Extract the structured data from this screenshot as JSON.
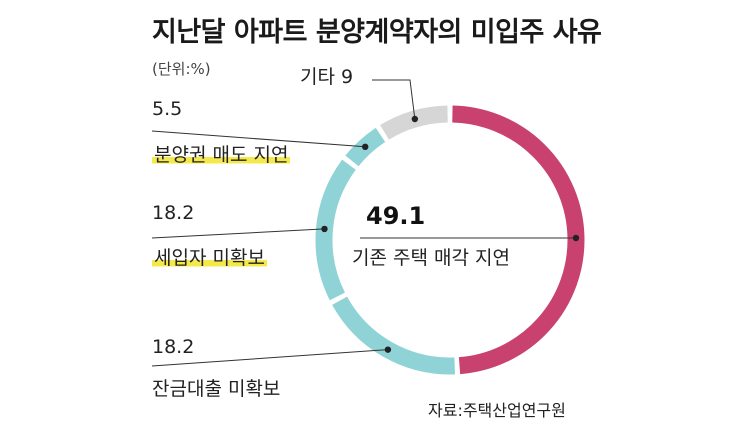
{
  "chart_data": {
    "type": "pie",
    "title": "지난달 아파트 분양계약자의 미입주 사유",
    "unit": "(단위:%)",
    "source": "자료:주택산업연구원",
    "slices": [
      {
        "label": "기존 주택 매각 지연",
        "value": 49.1,
        "value_text": "49.1",
        "color": "#c9416f"
      },
      {
        "label": "잔금대출 미확보",
        "value": 18.2,
        "value_text": "18.2",
        "color": "#8fd3d6"
      },
      {
        "label": "세입자 미확보",
        "value": 18.2,
        "value_text": "18.2",
        "color": "#8fd3d6"
      },
      {
        "label": "분양권 매도 지연",
        "value": 5.5,
        "value_text": "5.5",
        "color": "#8fd3d6"
      },
      {
        "label": "기타",
        "value": 9,
        "value_text": "9",
        "color": "#d6d6d6"
      }
    ],
    "highlighted_labels": [
      "분양권 매도 지연",
      "세입자 미확보"
    ]
  }
}
